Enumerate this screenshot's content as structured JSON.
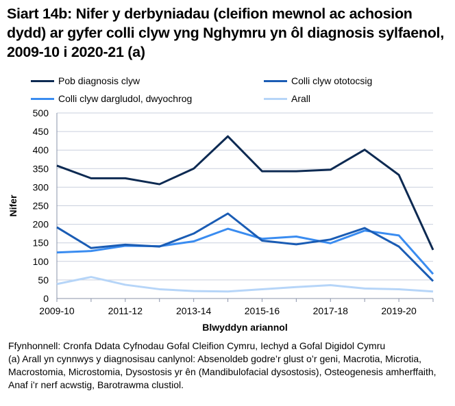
{
  "title": "Siart 14b: Nifer y derbyniadau (cleifion mewnol ac achosion dydd) ar gyfer colli clyw yng Nghymru yn ôl diagnosis sylfaenol, 2009-10 i 2020-21 (a)",
  "footnotes": [
    "Ffynhonnell: Cronfa Ddata Cyfnodau Gofal Cleifion Cymru, Iechyd a Gofal Digidol Cymru",
    "(a) Arall yn cynnwys y diagnosisau canlynol: Absenoldeb godre’r glust o’r geni, Macrotia, Microtia, Macrostomia, Microstomia, Dysostosis yr ên (Mandibulofacial dysostosis), Osteogenesis amherffaith, Anaf i’r nerf acwstig, Barotrawma clustiol."
  ],
  "chart_data": {
    "type": "line",
    "xlabel": "Blwyddyn ariannol",
    "ylabel": "Nifer",
    "ylim": [
      0,
      500
    ],
    "yticks": [
      0,
      50,
      100,
      150,
      200,
      250,
      300,
      350,
      400,
      450,
      500
    ],
    "categories": [
      "2009-10",
      "2010-11",
      "2011-12",
      "2012-13",
      "2013-14",
      "2014-15",
      "2015-16",
      "2016-17",
      "2017-18",
      "2018-19",
      "2019-20",
      "2020-21"
    ],
    "xtick_labels": [
      "2009-10",
      "2011-12",
      "2013-14",
      "2015-16",
      "2017-18",
      "2019-20"
    ],
    "grid": "horizontal",
    "legend": "top",
    "series": [
      {
        "name": "Pob diagnosis clyw",
        "color": "#0d2a52",
        "values": [
          358,
          324,
          324,
          308,
          350,
          437,
          343,
          343,
          347,
          401,
          333,
          131
        ]
      },
      {
        "name": "Colli clyw ototocsig",
        "color": "#1a5cb4",
        "values": [
          192,
          136,
          145,
          140,
          175,
          229,
          156,
          146,
          159,
          190,
          140,
          47
        ]
      },
      {
        "name": "Colli clyw dargludol, dwyochrog",
        "color": "#3a8cf0",
        "values": [
          124,
          128,
          142,
          141,
          154,
          188,
          161,
          167,
          149,
          183,
          170,
          66
        ]
      },
      {
        "name": "Arall",
        "color": "#b6d5f8",
        "values": [
          39,
          58,
          37,
          25,
          20,
          19,
          25,
          31,
          36,
          27,
          25,
          19
        ]
      }
    ]
  }
}
